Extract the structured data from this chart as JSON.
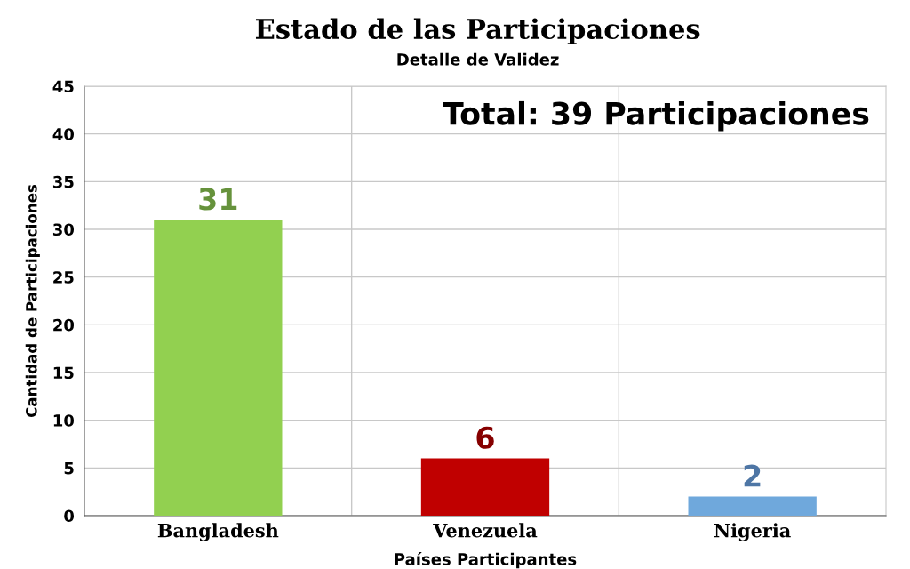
{
  "chart_data": {
    "type": "bar",
    "title": "Estado de las Participaciones",
    "subtitle": "Detalle de Validez",
    "xlabel": "Países Participantes",
    "ylabel": "Cantidad de Participaciones",
    "categories": [
      "Bangladesh",
      "Venezuela",
      "Nigeria"
    ],
    "values": [
      31,
      6,
      2
    ],
    "colors": [
      "#92d050",
      "#c00000",
      "#6fa8dc"
    ],
    "ylim": [
      0,
      45
    ],
    "yticks": [
      0,
      5,
      10,
      15,
      20,
      25,
      30,
      35,
      40,
      45
    ],
    "grid": true,
    "data_labels": true,
    "annotations": [
      "Total: 39 Participaciones"
    ]
  }
}
